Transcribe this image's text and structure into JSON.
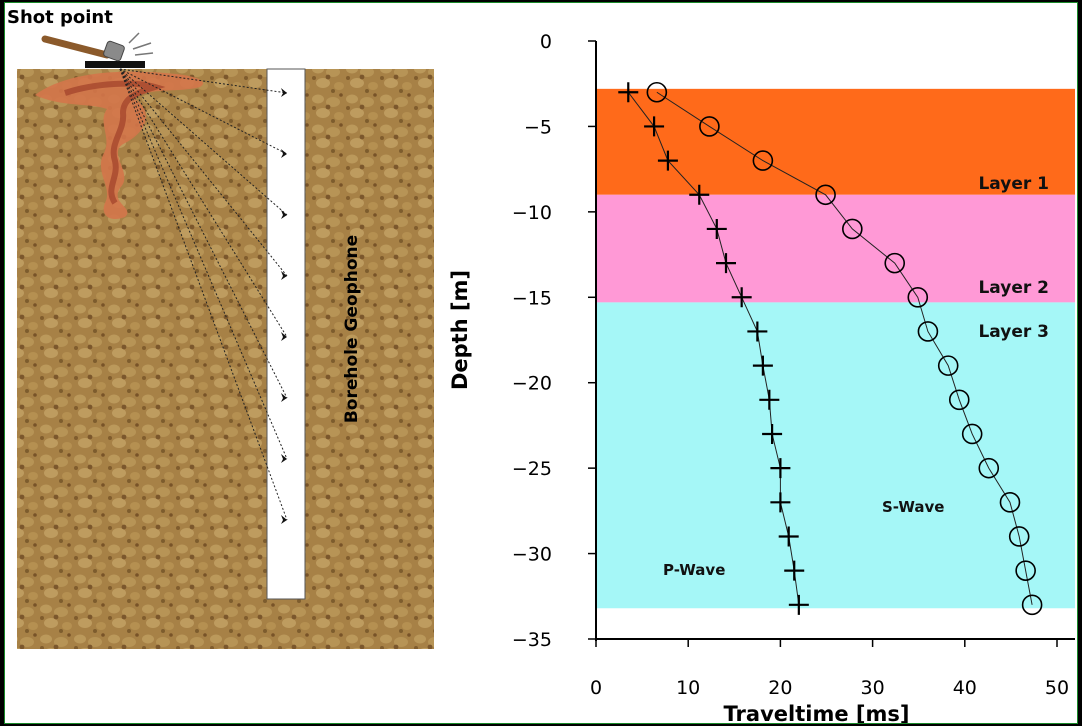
{
  "illustration": {
    "shot_label": "Shot point",
    "borehole_label": "Borehole Geophone"
  },
  "chart_data": {
    "type": "scatter",
    "title": "",
    "xlabel": "Traveltime [ms]",
    "ylabel": "Depth [m]",
    "xlim": [
      0,
      50
    ],
    "ylim": [
      -35,
      0
    ],
    "xticks": [
      0,
      10,
      20,
      30,
      40,
      50
    ],
    "yticks": [
      0,
      -5,
      -10,
      -15,
      -20,
      -25,
      -30,
      -35
    ],
    "grid": false,
    "layers": [
      {
        "name": "Layer 1",
        "top": -2.8,
        "bottom": -9,
        "color": "#ff6a1a"
      },
      {
        "name": "Layer 2",
        "top": -9,
        "bottom": -15.3,
        "color": "#ff99d6"
      },
      {
        "name": "Layer 3",
        "top": -15.3,
        "bottom": -33.2,
        "color": "#a5f7f7"
      }
    ],
    "series": [
      {
        "name": "P-Wave",
        "marker": "cross",
        "depth": [
          -3,
          -5,
          -7,
          -9,
          -11,
          -13,
          -15,
          -17,
          -19,
          -21,
          -23,
          -25,
          -27,
          -29,
          -31,
          -33
        ],
        "traveltime": [
          3.5,
          6.3,
          7.8,
          11.2,
          13.1,
          14.1,
          15.8,
          17.5,
          18.1,
          18.8,
          19.1,
          20.0,
          20.0,
          20.9,
          21.5,
          22.0
        ]
      },
      {
        "name": "S-Wave",
        "marker": "circle",
        "depth": [
          -3,
          -5,
          -7,
          -9,
          -11,
          -13,
          -15,
          -17,
          -19,
          -21,
          -23,
          -25,
          -27,
          -29,
          -31,
          -33
        ],
        "traveltime": [
          6.6,
          12.3,
          18.1,
          24.9,
          27.8,
          32.4,
          34.9,
          36.0,
          38.2,
          39.4,
          40.8,
          42.6,
          44.9,
          45.9,
          46.6,
          47.3
        ]
      }
    ]
  }
}
